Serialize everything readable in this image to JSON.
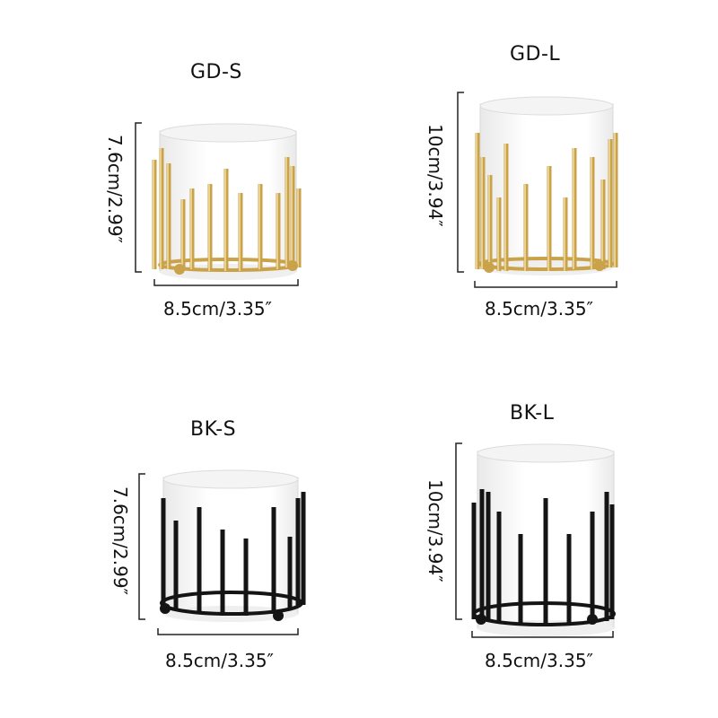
{
  "colors": {
    "gold": "#c9a24a",
    "gold_light": "#f2dfa6",
    "black": "#141414",
    "porcelain": "#ffffff",
    "porcelain_shade": "#e9e9e9"
  },
  "products": [
    {
      "code": "GD-S",
      "height_label": "7.6cm/2.99″",
      "width_label": "8.5cm/3.35″",
      "finish": "gold"
    },
    {
      "code": "GD-L",
      "height_label": "10cm/3.94″",
      "width_label": "8.5cm/3.35″",
      "finish": "gold"
    },
    {
      "code": "BK-S",
      "height_label": "7.6cm/2.99″",
      "width_label": "8.5cm/3.35″",
      "finish": "black"
    },
    {
      "code": "BK-L",
      "height_label": "10cm/3.94″",
      "width_label": "8.5cm/3.35″",
      "finish": "black"
    }
  ]
}
